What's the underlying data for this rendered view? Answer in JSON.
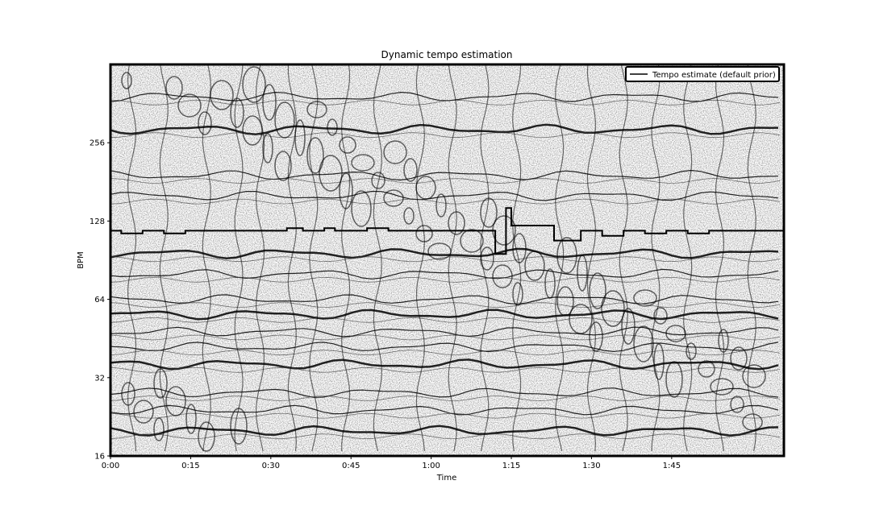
{
  "chart_data": {
    "type": "heatmap",
    "title": "Dynamic tempo estimation",
    "xlabel": "Time",
    "ylabel": "BPM",
    "x_scale": "linear",
    "y_scale": "log2",
    "xlim_seconds": [
      0,
      126
    ],
    "ylim_bpm": [
      16,
      512
    ],
    "x_ticks": [
      {
        "value": 0,
        "label": "0:00"
      },
      {
        "value": 15,
        "label": "0:15"
      },
      {
        "value": 30,
        "label": "0:30"
      },
      {
        "value": 45,
        "label": "0:45"
      },
      {
        "value": 60,
        "label": "1:00"
      },
      {
        "value": 75,
        "label": "1:15"
      },
      {
        "value": 90,
        "label": "1:30"
      },
      {
        "value": 105,
        "label": "1:45"
      }
    ],
    "y_ticks": [
      {
        "value": 16,
        "label": "16"
      },
      {
        "value": 32,
        "label": "32"
      },
      {
        "value": 64,
        "label": "64"
      },
      {
        "value": 128,
        "label": "128"
      },
      {
        "value": 256,
        "label": "256"
      }
    ],
    "colormap": "binary (gray_r)",
    "grid": false,
    "legend_position": "top-right",
    "series": [
      {
        "name": "Tempo estimate (default prior)",
        "color": "#000000",
        "type": "step",
        "x": [
          0,
          2,
          6,
          10,
          14,
          24,
          30,
          33,
          36,
          40,
          42,
          46,
          48,
          52,
          56,
          62,
          68,
          71,
          72,
          73,
          74,
          75,
          76,
          78,
          81,
          83,
          84,
          85,
          88,
          92,
          96,
          100,
          104,
          108,
          112,
          116,
          120,
          126
        ],
        "y": [
          117.5,
          114.8,
          117.5,
          114.8,
          117.5,
          117.5,
          117.5,
          120.2,
          117.5,
          120.2,
          117.5,
          117.5,
          120.2,
          117.5,
          117.5,
          117.5,
          117.5,
          117.5,
          95.7,
          95.7,
          143.6,
          123.0,
          123.0,
          123.0,
          123.0,
          107.7,
          107.7,
          107.7,
          117.5,
          112.3,
          117.5,
          114.8,
          117.5,
          114.8,
          117.5,
          117.5,
          117.5,
          117.5
        ]
      }
    ]
  }
}
